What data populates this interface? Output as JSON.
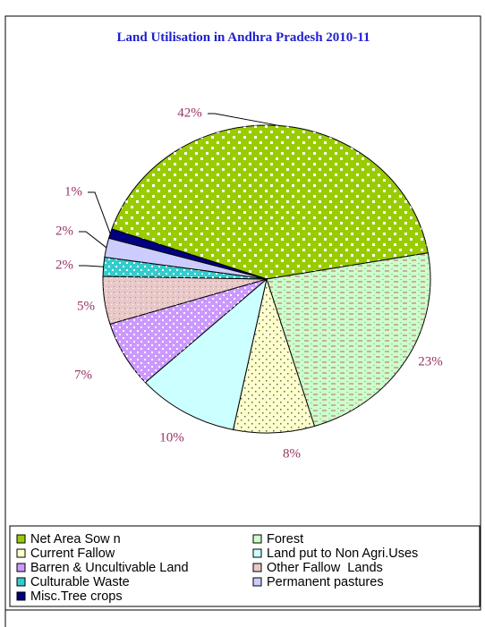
{
  "chart_data": {
    "type": "pie",
    "title": "Land Utilisation in Andhra Pradesh 2010-11",
    "categories": [
      "Net Area Sow n",
      "Forest",
      "Current Fallow",
      "Land put to Non Agri.Uses",
      "Barren & Uncultivable Land",
      "Other Fallow  Lands",
      "Culturable Waste",
      "Permanent pastures",
      "Misc.Tree crops"
    ],
    "values": [
      42,
      23,
      8,
      10,
      7,
      5,
      2,
      2,
      1
    ],
    "value_labels": [
      "42%",
      "23%",
      "8%",
      "10%",
      "7%",
      "5%",
      "2%",
      "2%",
      "1%"
    ],
    "colors": [
      "#99cc00",
      "#ccffcc",
      "#ffffcc",
      "#ccffff",
      "#cc99ff",
      "#e8c8c8",
      "#33cccc",
      "#ccccff",
      "#000080"
    ],
    "legend": "bottom"
  }
}
